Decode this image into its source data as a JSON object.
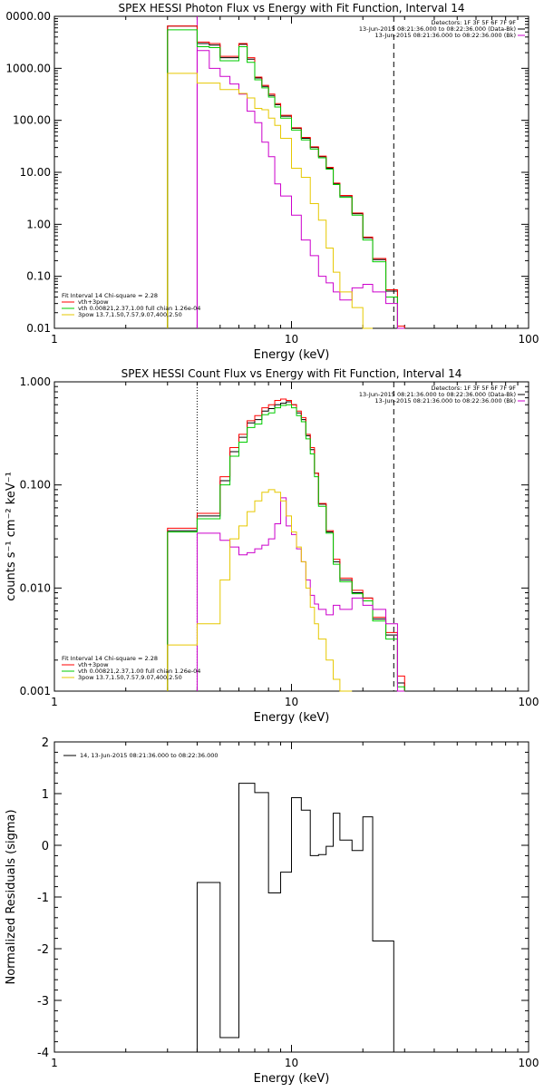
{
  "chart_data": [
    {
      "type": "line",
      "step": true,
      "title": "SPEX HESSI Photon Flux vs Energy with Fit Function, Interval 14",
      "xlabel": "Energy (keV)",
      "ylabel": "",
      "xscale": "log",
      "yscale": "log",
      "xlim": [
        1,
        100
      ],
      "ylim": [
        0.01,
        10000
      ],
      "x_ticks": [
        "1",
        "10",
        "100"
      ],
      "y_ticks": [
        "0.01",
        "0.10",
        "1.00",
        "10.00",
        "100.00",
        "1000.00",
        "0000.00"
      ],
      "grid": false,
      "legend_position": "bottom-left",
      "legend_title": "Fit Interval 14   Chi-square = 2.28",
      "info_lines": [
        "Detectors: 1F 3F 5F 6F 7F 9F",
        "13-Jun-2015 08:21:36.000 to 08:22:36.000 (Data-Bk)",
        "13-Jun-2015 08:21:36.000 to 08:22:36.000 (Bk)"
      ],
      "vlines": [
        {
          "x": 4.0,
          "style": "solid",
          "color": "#cc00cc"
        },
        {
          "x": 27.0,
          "style": "dashed",
          "color": "#000000"
        }
      ],
      "edges": [
        3.0,
        3.5,
        4.0,
        4.5,
        5.0,
        5.5,
        6.0,
        6.5,
        7.0,
        7.5,
        8.0,
        8.5,
        9.0,
        10.0,
        11.0,
        12.0,
        13.0,
        14.0,
        15.0,
        16.0,
        18.0,
        20.0,
        22.0,
        25.0,
        28.0,
        30.0
      ],
      "series": [
        {
          "name": "Data-Bk",
          "color": "#000000",
          "values": [
            6500,
            6500,
            3000,
            2800,
            1600,
            1600,
            2900,
            1500,
            650,
            450,
            300,
            200,
            120,
            70,
            45,
            30,
            20,
            12,
            6,
            3.5,
            1.6,
            0.55,
            0.21,
            0.052,
            0.01
          ]
        },
        {
          "name": "vth+3pow",
          "color": "#ff0000",
          "values": [
            6500,
            6500,
            3200,
            3000,
            1700,
            1700,
            3000,
            1600,
            680,
            470,
            320,
            210,
            125,
            72,
            47,
            31,
            20.5,
            12.5,
            6.2,
            3.6,
            1.65,
            0.57,
            0.22,
            0.055,
            0.011
          ]
        },
        {
          "name": "vth 0.00821,2.37,1.00 full chian 1.26e-04",
          "color": "#00cc00",
          "values": [
            5500,
            5500,
            2600,
            2500,
            1400,
            1400,
            2600,
            1300,
            600,
            420,
            280,
            180,
            110,
            65,
            42,
            28,
            19,
            11.5,
            5.8,
            3.3,
            1.5,
            0.5,
            0.19,
            0.04,
            0.008
          ]
        },
        {
          "name": "bkg",
          "color": "#cc00cc",
          "values": [
            null,
            null,
            2200,
            1000,
            700,
            500,
            320,
            150,
            90,
            38,
            20,
            6,
            3.5,
            1.5,
            0.5,
            0.25,
            0.1,
            0.075,
            0.05,
            0.035,
            0.06,
            0.07,
            0.05,
            0.03,
            0.008
          ]
        },
        {
          "name": "3pow 13.7,1.50,7.57,9.07,400,2.50",
          "color": "#e6c800",
          "values": [
            800,
            800,
            520,
            520,
            390,
            390,
            330,
            270,
            170,
            160,
            110,
            80,
            45,
            12,
            8,
            2.5,
            1.2,
            0.35,
            0.12,
            0.05,
            0.025,
            0.01,
            null,
            null,
            null
          ]
        }
      ]
    },
    {
      "type": "line",
      "step": true,
      "title": "SPEX HESSI Count Flux vs Energy with Fit Function, Interval 14",
      "xlabel": "Energy (keV)",
      "ylabel": "counts s⁻¹ cm⁻² keV⁻¹",
      "xscale": "log",
      "yscale": "log",
      "xlim": [
        1,
        100
      ],
      "ylim": [
        0.001,
        1.0
      ],
      "x_ticks": [
        "1",
        "10",
        "100"
      ],
      "y_ticks": [
        "0.001",
        "0.010",
        "0.100",
        "1.000"
      ],
      "grid": false,
      "legend_position": "bottom-left",
      "legend_title": "Fit Interval 14   Chi-square = 2.28",
      "info_lines": [
        "Detectors: 1F 3F 5F 6F 7F 9F",
        "13-Jun-2015 08:21:36.000 to 08:22:36.000 (Data-Bk)",
        "13-Jun-2015 08:21:36.000 to 08:22:36.000 (Bk)"
      ],
      "vlines": [
        {
          "x": 4.0,
          "style": "dotted",
          "color": "#000000"
        },
        {
          "x": 27.0,
          "style": "dashed",
          "color": "#000000"
        }
      ],
      "edges": [
        3.0,
        3.5,
        4.0,
        4.5,
        5.0,
        5.5,
        6.0,
        6.5,
        7.0,
        7.5,
        8.0,
        8.5,
        9.0,
        9.5,
        10.0,
        10.5,
        11.0,
        11.5,
        12.0,
        12.5,
        13.0,
        14.0,
        15.0,
        16.0,
        18.0,
        20.0,
        22.0,
        25.0,
        28.0,
        30.0
      ],
      "series": [
        {
          "name": "Data-Bk",
          "color": "#000000",
          "values": [
            0.036,
            0.036,
            0.05,
            0.05,
            0.11,
            0.21,
            0.29,
            0.4,
            0.43,
            0.52,
            0.55,
            0.6,
            0.62,
            0.64,
            0.6,
            0.5,
            0.43,
            0.3,
            0.22,
            0.13,
            0.065,
            0.035,
            0.018,
            0.012,
            0.009,
            0.008,
            0.005,
            0.0035,
            0.0012
          ]
        },
        {
          "name": "vth+3pow",
          "color": "#ff0000",
          "values": [
            0.038,
            0.038,
            0.053,
            0.053,
            0.12,
            0.23,
            0.31,
            0.42,
            0.47,
            0.56,
            0.6,
            0.66,
            0.68,
            0.66,
            0.6,
            0.52,
            0.45,
            0.31,
            0.23,
            0.13,
            0.066,
            0.036,
            0.019,
            0.0125,
            0.0095,
            0.008,
            0.0052,
            0.0037,
            0.0014
          ]
        },
        {
          "name": "vth 0.00821,2.37,1.00 full chian 1.26e-04",
          "color": "#00cc00",
          "values": [
            0.035,
            0.035,
            0.047,
            0.047,
            0.1,
            0.19,
            0.26,
            0.36,
            0.39,
            0.48,
            0.5,
            0.56,
            0.59,
            0.6,
            0.56,
            0.47,
            0.41,
            0.28,
            0.2,
            0.12,
            0.062,
            0.034,
            0.017,
            0.0115,
            0.0088,
            0.0075,
            0.0048,
            0.0032,
            0.0011
          ]
        },
        {
          "name": "bkg",
          "color": "#cc00cc",
          "values": [
            null,
            null,
            0.034,
            0.034,
            0.029,
            0.025,
            0.021,
            0.022,
            0.024,
            0.026,
            0.03,
            0.042,
            0.075,
            0.04,
            0.033,
            0.024,
            0.018,
            0.012,
            0.0085,
            0.007,
            0.0062,
            0.0055,
            0.0068,
            0.0062,
            0.008,
            0.0068,
            0.0062,
            0.0045,
            0.001
          ]
        },
        {
          "name": "3pow 13.7,1.50,7.57,9.07,400,2.50",
          "color": "#e6c800",
          "values": [
            0.0028,
            0.0028,
            0.0045,
            0.0045,
            0.012,
            0.03,
            0.04,
            0.055,
            0.07,
            0.085,
            0.09,
            0.085,
            0.07,
            0.05,
            0.035,
            0.025,
            0.018,
            0.01,
            0.0065,
            0.0045,
            0.0032,
            0.002,
            0.0013,
            0.001,
            null,
            null,
            null,
            null,
            null
          ]
        }
      ]
    },
    {
      "type": "line",
      "step": true,
      "title": "",
      "xlabel": "Energy (keV)",
      "ylabel": "Normalized Residuals (sigma)",
      "xscale": "log",
      "yscale": "linear",
      "xlim": [
        1,
        100
      ],
      "ylim": [
        -4,
        2
      ],
      "x_ticks": [
        "1",
        "10",
        "100"
      ],
      "y_ticks": [
        "-4",
        "-3",
        "-2",
        "-1",
        "0",
        "1",
        "2"
      ],
      "grid": false,
      "legend_position": "top-left",
      "edges": [
        4.0,
        4.5,
        5.0,
        5.5,
        6.0,
        6.5,
        7.0,
        7.5,
        8.0,
        8.5,
        9.0,
        9.5,
        10.0,
        10.5,
        11.0,
        11.5,
        12.0,
        13.0,
        14.0,
        15.0,
        16.0,
        18.0,
        20.0,
        22.0,
        25.0,
        27.0
      ],
      "series": [
        {
          "name": "14, 13-Jun-2015 08:21:36.000 to 08:22:36.000",
          "color": "#000000",
          "values": [
            -0.72,
            -0.72,
            -3.72,
            -3.72,
            1.2,
            1.2,
            1.02,
            1.02,
            -0.92,
            -0.92,
            -0.52,
            -0.52,
            0.92,
            0.92,
            0.68,
            0.68,
            -0.2,
            -0.18,
            -0.02,
            0.62,
            0.1,
            -0.1,
            0.55,
            -1.85,
            -1.85
          ]
        }
      ]
    }
  ]
}
